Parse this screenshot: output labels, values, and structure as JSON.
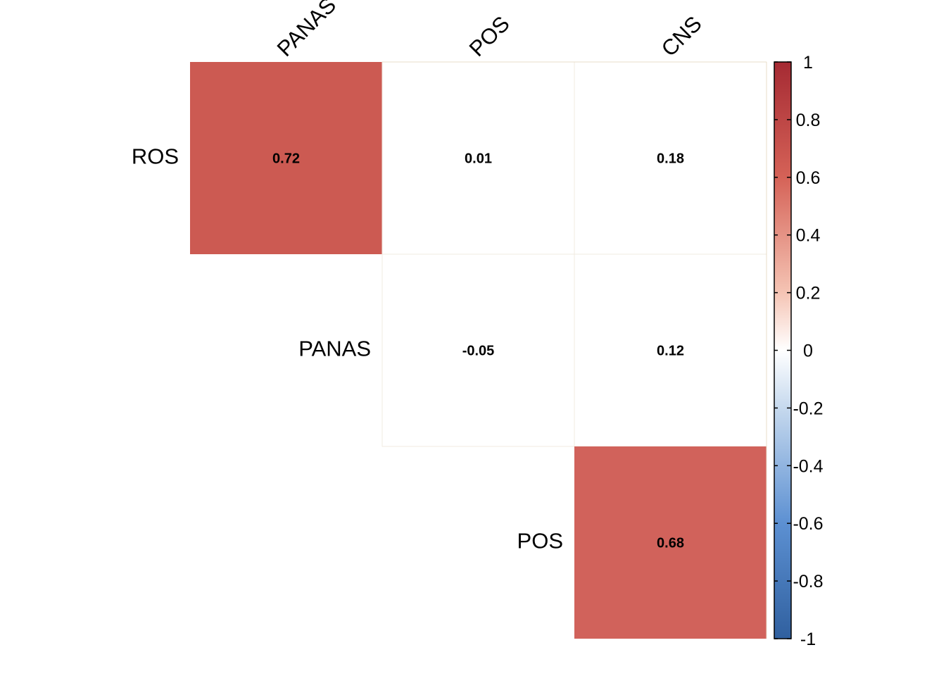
{
  "chart_data": {
    "type": "heatmap",
    "title": "",
    "variant": "upper-triangle correlation matrix",
    "row_labels": [
      "ROS",
      "PANAS",
      "POS"
    ],
    "col_labels": [
      "PANAS",
      "POS",
      "CNS"
    ],
    "cells": [
      {
        "row": "ROS",
        "col": "PANAS",
        "value": 0.72,
        "label": "0.72"
      },
      {
        "row": "ROS",
        "col": "POS",
        "value": 0.01,
        "label": "0.01"
      },
      {
        "row": "ROS",
        "col": "CNS",
        "value": 0.18,
        "label": "0.18"
      },
      {
        "row": "PANAS",
        "col": "POS",
        "value": -0.05,
        "label": "-0.05"
      },
      {
        "row": "PANAS",
        "col": "CNS",
        "value": 0.12,
        "label": "0.12"
      },
      {
        "row": "POS",
        "col": "CNS",
        "value": 0.68,
        "label": "0.68"
      }
    ],
    "colorbar": {
      "range": [
        -1,
        1
      ],
      "ticks": [
        1,
        0.8,
        0.6,
        0.4,
        0.2,
        0,
        -0.2,
        -0.4,
        -0.6,
        -0.8,
        -1
      ],
      "tick_labels": [
        "1",
        "0.8",
        "0.6",
        "0.4",
        "0.2",
        "0",
        "-0.2",
        "-0.4",
        "-0.6",
        "-0.8",
        "-1"
      ],
      "colors": {
        "low": "#3a65a8",
        "mid": "#ffffff",
        "high": "#b2282e"
      },
      "placement": "right"
    },
    "cell_colors": {
      "ROS-PANAS": "#cc5a52",
      "POS-CNS": "#d1625b"
    },
    "grid_color": "#e8dcc8",
    "grid": false
  }
}
